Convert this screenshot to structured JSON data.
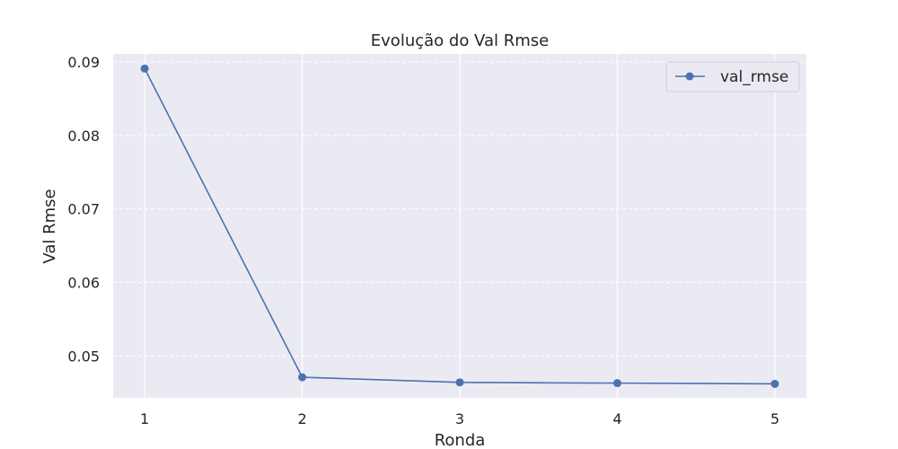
{
  "chart_data": {
    "type": "line",
    "title": "Evolução do Val Rmse",
    "xlabel": "Ronda",
    "ylabel": "Val Rmse",
    "x": [
      1,
      2,
      3,
      4,
      5
    ],
    "xticks": [
      "1",
      "2",
      "3",
      "4",
      "5"
    ],
    "yticks": [
      "0.05",
      "0.06",
      "0.07",
      "0.08",
      "0.09"
    ],
    "ytick_values": [
      0.05,
      0.06,
      0.07,
      0.08,
      0.09
    ],
    "xlim": [
      0.8,
      5.2
    ],
    "ylim": [
      0.0443,
      0.0911
    ],
    "grid": true,
    "legend_position": "top-right",
    "series": [
      {
        "name": "val_rmse",
        "color": "#4c72b0",
        "values": [
          0.0891,
          0.0471,
          0.0464,
          0.0463,
          0.0462
        ]
      }
    ],
    "colors": {
      "plot_background": "#eaeaf2",
      "grid": "#ffffff"
    }
  }
}
